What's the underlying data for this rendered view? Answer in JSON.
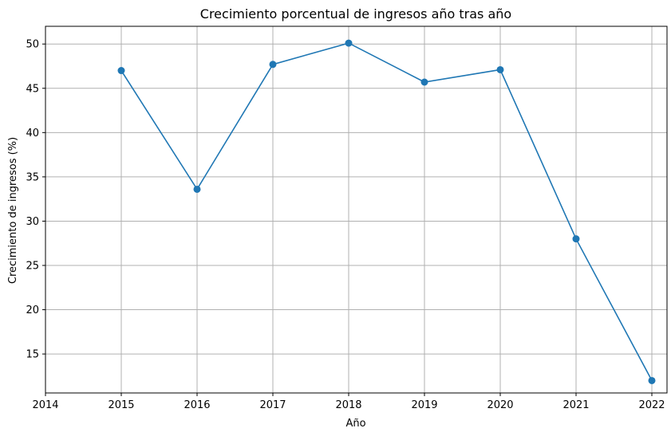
{
  "chart_data": {
    "type": "line",
    "title": "Crecimiento porcentual de ingresos año tras año",
    "xlabel": "Año",
    "ylabel": "Crecimiento de ingresos (%)",
    "x": [
      2015,
      2016,
      2017,
      2018,
      2019,
      2020,
      2021,
      2022
    ],
    "series": [
      {
        "values": [
          47.0,
          33.6,
          47.7,
          50.1,
          45.7,
          47.1,
          28.0,
          12.0
        ],
        "color": "#1f77b4",
        "marker": "circle"
      }
    ],
    "xlim": [
      2014,
      2022.2
    ],
    "ylim": [
      10.6,
      52.0
    ],
    "xticks": [
      2014,
      2015,
      2016,
      2017,
      2018,
      2019,
      2020,
      2021,
      2022
    ],
    "yticks": [
      15,
      20,
      25,
      30,
      35,
      40,
      45,
      50
    ],
    "grid": true,
    "legend": "none"
  }
}
